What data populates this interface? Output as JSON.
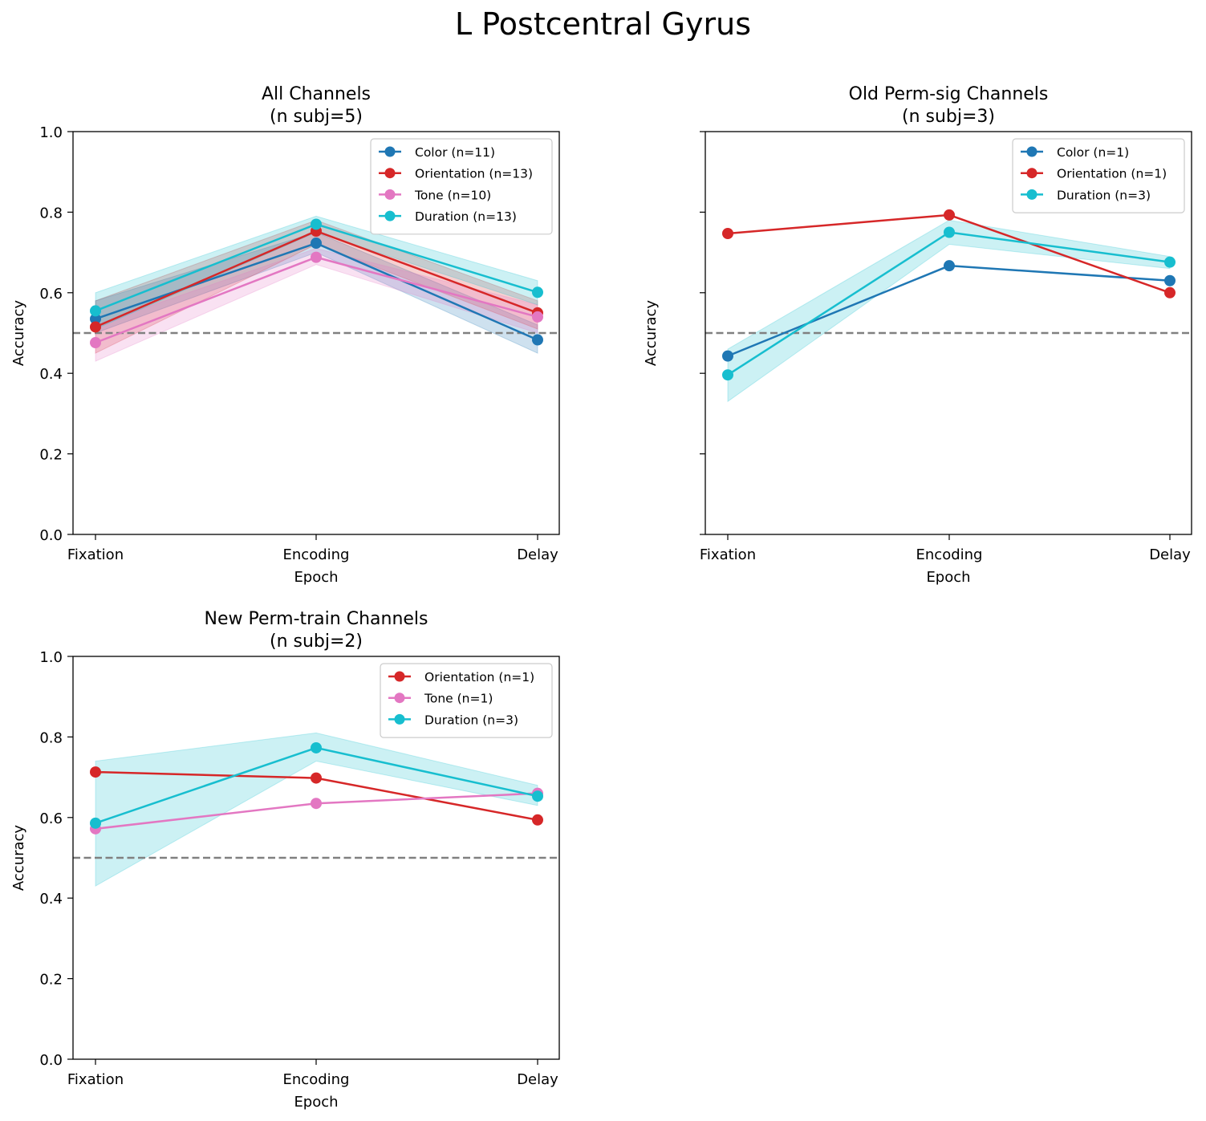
{
  "figure": {
    "title": "L Postcentral Gyrus"
  },
  "colors": {
    "Color": "#1f77b4",
    "Orientation": "#d62728",
    "Tone": "#e377c2",
    "Duration": "#17becf",
    "chance": "#808080"
  },
  "chart_data": [
    {
      "type": "line",
      "title": "All Channels\n(n subj=5)",
      "xlabel": "Epoch",
      "ylabel": "Accuracy",
      "categories": [
        "Fixation",
        "Encoding",
        "Delay"
      ],
      "ylim": [
        0.0,
        1.0
      ],
      "yticks": [
        "0.0",
        "0.2",
        "0.4",
        "0.6",
        "0.8",
        "1.0"
      ],
      "show_ytick_labels": true,
      "chance_level": 0.5,
      "legend_position": "top-right",
      "series": [
        {
          "name": "Color (n=11)",
          "color_key": "Color",
          "values": [
            0.535,
            0.723,
            0.483
          ],
          "lower": [
            0.5,
            0.7,
            0.45
          ],
          "upper": [
            0.58,
            0.75,
            0.52
          ]
        },
        {
          "name": "Orientation (n=13)",
          "color_key": "Orientation",
          "values": [
            0.515,
            0.753,
            0.55
          ],
          "lower": [
            0.45,
            0.72,
            0.51
          ],
          "upper": [
            0.58,
            0.78,
            0.58
          ]
        },
        {
          "name": "Tone (n=10)",
          "color_key": "Tone",
          "values": [
            0.476,
            0.688,
            0.54
          ],
          "lower": [
            0.43,
            0.67,
            0.5
          ],
          "upper": [
            0.52,
            0.71,
            0.57
          ]
        },
        {
          "name": "Duration (n=13)",
          "color_key": "Duration",
          "values": [
            0.555,
            0.77,
            0.601
          ],
          "lower": [
            0.51,
            0.75,
            0.57
          ],
          "upper": [
            0.6,
            0.79,
            0.63
          ]
        }
      ]
    },
    {
      "type": "line",
      "title": "Old Perm-sig Channels\n(n subj=3)",
      "xlabel": "Epoch",
      "ylabel": "Accuracy",
      "categories": [
        "Fixation",
        "Encoding",
        "Delay"
      ],
      "ylim": [
        0.0,
        1.0
      ],
      "yticks": [
        "0.0",
        "0.2",
        "0.4",
        "0.6",
        "0.8",
        "1.0"
      ],
      "show_ytick_labels": false,
      "chance_level": 0.5,
      "legend_position": "top-right",
      "series": [
        {
          "name": "Color (n=1)",
          "color_key": "Color",
          "values": [
            0.443,
            0.667,
            0.63
          ]
        },
        {
          "name": "Orientation (n=1)",
          "color_key": "Orientation",
          "values": [
            0.747,
            0.793,
            0.6
          ]
        },
        {
          "name": "Duration (n=3)",
          "color_key": "Duration",
          "values": [
            0.396,
            0.75,
            0.676
          ],
          "lower": [
            0.33,
            0.72,
            0.66
          ],
          "upper": [
            0.46,
            0.78,
            0.69
          ]
        }
      ]
    },
    {
      "type": "line",
      "title": "New Perm-train Channels\n(n subj=2)",
      "xlabel": "Epoch",
      "ylabel": "Accuracy",
      "categories": [
        "Fixation",
        "Encoding",
        "Delay"
      ],
      "ylim": [
        0.0,
        1.0
      ],
      "yticks": [
        "0.0",
        "0.2",
        "0.4",
        "0.6",
        "0.8",
        "1.0"
      ],
      "show_ytick_labels": true,
      "chance_level": 0.5,
      "legend_position": "top-right",
      "series": [
        {
          "name": "Orientation (n=1)",
          "color_key": "Orientation",
          "values": [
            0.713,
            0.698,
            0.594
          ]
        },
        {
          "name": "Tone (n=1)",
          "color_key": "Tone",
          "values": [
            0.572,
            0.635,
            0.66
          ]
        },
        {
          "name": "Duration (n=3)",
          "color_key": "Duration",
          "values": [
            0.586,
            0.773,
            0.653
          ],
          "lower": [
            0.43,
            0.74,
            0.63
          ],
          "upper": [
            0.74,
            0.81,
            0.68
          ]
        }
      ]
    }
  ]
}
